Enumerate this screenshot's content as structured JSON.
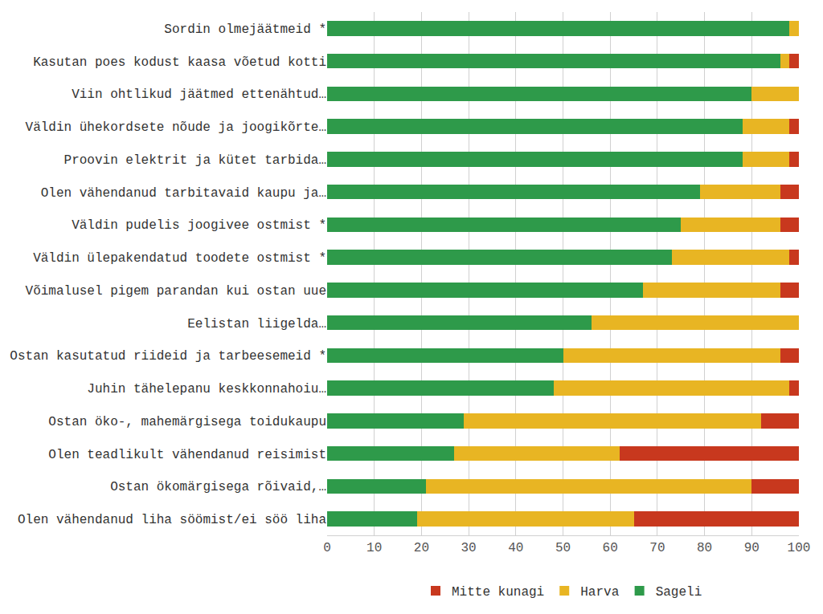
{
  "chart_data": {
    "type": "bar",
    "orientation": "horizontal",
    "stacked": true,
    "grid": true,
    "legend": "bottom",
    "categories": [
      "Sordin olmejäätmeid *",
      "Kasutan poes kodust kaasa võetud kotti",
      "Viin ohtlikud jäätmed ettenähtud…",
      "Väldin ühekordsete nõude ja joogikõrte…",
      "Proovin elektrit ja kütet tarbida…",
      "Olen vähendanud tarbitavaid kaupu ja…",
      "Väldin pudelis joogivee ostmist *",
      "Väldin ülepakendatud toodete ostmist *",
      "Võimalusel pigem parandan kui ostan uue",
      "Eelistan liigelda…",
      "Ostan kasutatud riideid ja tarbeesemeid *",
      "Juhin tähelepanu keskkonnahoiu…",
      "Ostan öko-, mahemärgisega toidukaupu",
      "Olen teadlikult vähendanud reisimist",
      "Ostan ökomärgisega rõivaid,…",
      "Olen vähendanud liha söömist/ei söö liha"
    ],
    "series": [
      {
        "name": "Sageli",
        "color": "#2e9a4a",
        "values": [
          98,
          96,
          90,
          88,
          88,
          79,
          75,
          73,
          67,
          56,
          50,
          48,
          29,
          27,
          21,
          19
        ]
      },
      {
        "name": "Harva",
        "color": "#e8b523",
        "values": [
          2,
          2,
          10,
          10,
          10,
          17,
          21,
          25,
          29,
          44,
          46,
          50,
          63,
          35,
          69,
          46
        ]
      },
      {
        "name": "Mitte kunagi",
        "color": "#c8381e",
        "values": [
          0,
          2,
          0,
          2,
          2,
          4,
          4,
          2,
          4,
          0,
          4,
          2,
          8,
          38,
          10,
          35
        ]
      }
    ],
    "xlim": [
      0,
      100
    ],
    "xticks": [
      0,
      10,
      20,
      30,
      40,
      50,
      60,
      70,
      80,
      90,
      100
    ]
  }
}
